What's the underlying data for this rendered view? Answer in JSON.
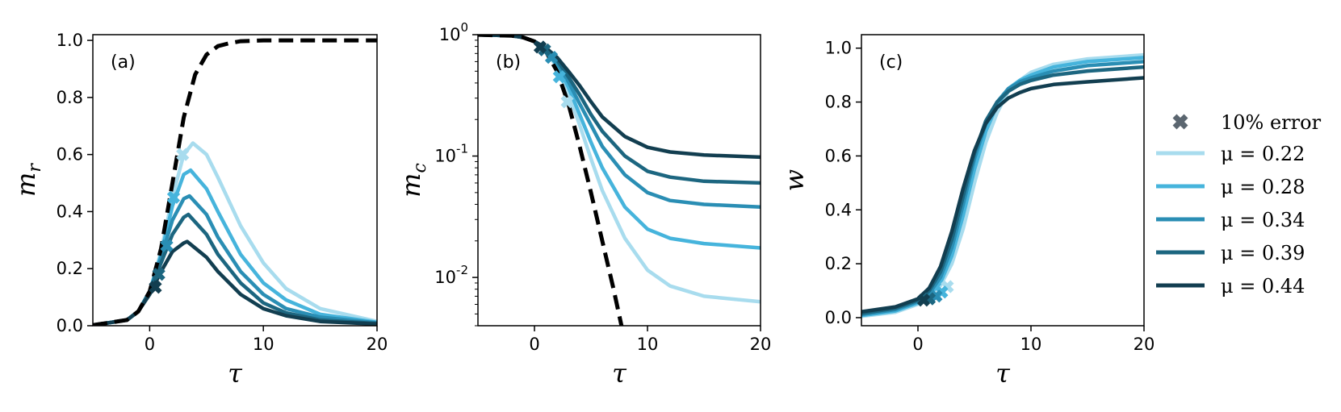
{
  "legend": {
    "marker_label": "10% error",
    "marker_color": "#5b6670",
    "entries": [
      {
        "label": "μ = 0.22",
        "color": "#a8dcee"
      },
      {
        "label": "μ = 0.28",
        "color": "#46b4dc"
      },
      {
        "label": "μ = 0.34",
        "color": "#2a8eb4"
      },
      {
        "label": "μ = 0.39",
        "color": "#1c6680"
      },
      {
        "label": "μ = 0.44",
        "color": "#123e50"
      }
    ]
  },
  "chart_data": [
    {
      "type": "line",
      "panel_label": "(a)",
      "xlabel": "τ",
      "ylabel": "m",
      "ylabel_sub": "r",
      "xlim": [
        -5,
        20
      ],
      "ylim": [
        0,
        1.02
      ],
      "xticks": [
        0,
        10,
        20
      ],
      "yticks": [
        0.0,
        0.2,
        0.4,
        0.6,
        0.8,
        1.0
      ],
      "ytick_labels": [
        "0.0",
        "0.2",
        "0.4",
        "0.6",
        "0.8",
        "1.0"
      ],
      "reference_curve": {
        "style": "dashed",
        "color": "#000000",
        "x": [
          -5,
          -2,
          -1,
          0,
          1,
          2,
          3,
          4,
          5,
          6,
          7,
          8,
          10,
          14,
          20
        ],
        "y": [
          0.002,
          0.02,
          0.05,
          0.12,
          0.27,
          0.5,
          0.73,
          0.88,
          0.95,
          0.98,
          0.99,
          0.997,
          1.0,
          1.0,
          1.0
        ]
      },
      "series": [
        {
          "name": "μ = 0.22",
          "color": "#a8dcee",
          "x": [
            -5,
            -2,
            -1,
            0,
            1,
            2,
            3,
            3.8,
            5,
            6,
            8,
            10,
            12,
            15,
            20
          ],
          "y": [
            0.002,
            0.02,
            0.05,
            0.12,
            0.26,
            0.45,
            0.6,
            0.64,
            0.6,
            0.52,
            0.35,
            0.22,
            0.13,
            0.06,
            0.015
          ]
        },
        {
          "name": "μ = 0.28",
          "color": "#46b4dc",
          "x": [
            -5,
            -2,
            -1,
            0,
            1,
            2,
            3,
            3.6,
            5,
            6,
            8,
            10,
            12,
            15,
            20
          ],
          "y": [
            0.002,
            0.02,
            0.05,
            0.12,
            0.25,
            0.42,
            0.53,
            0.545,
            0.48,
            0.4,
            0.25,
            0.15,
            0.09,
            0.04,
            0.012
          ]
        },
        {
          "name": "μ = 0.34",
          "color": "#2a8eb4",
          "x": [
            -5,
            -2,
            -1,
            0,
            1,
            2,
            3,
            3.5,
            5,
            6,
            8,
            10,
            12,
            15,
            20
          ],
          "y": [
            0.002,
            0.02,
            0.05,
            0.12,
            0.24,
            0.37,
            0.445,
            0.455,
            0.39,
            0.31,
            0.19,
            0.11,
            0.06,
            0.03,
            0.01
          ]
        },
        {
          "name": "μ = 0.39",
          "color": "#1c6680",
          "x": [
            -5,
            -2,
            -1,
            0,
            1,
            2,
            3,
            3.4,
            5,
            6,
            8,
            10,
            12,
            15,
            20
          ],
          "y": [
            0.002,
            0.02,
            0.05,
            0.12,
            0.22,
            0.32,
            0.38,
            0.39,
            0.32,
            0.25,
            0.15,
            0.08,
            0.045,
            0.02,
            0.008
          ]
        },
        {
          "name": "μ = 0.44",
          "color": "#123e50",
          "x": [
            -5,
            -2,
            -1,
            0,
            1,
            2,
            3,
            3.3,
            5,
            6,
            8,
            10,
            12,
            15,
            20
          ],
          "y": [
            0.002,
            0.02,
            0.05,
            0.11,
            0.19,
            0.26,
            0.29,
            0.295,
            0.24,
            0.19,
            0.11,
            0.06,
            0.035,
            0.015,
            0.006
          ]
        }
      ],
      "error_markers": [
        {
          "x": 2.9,
          "y": 0.6,
          "color": "#a8dcee"
        },
        {
          "x": 2.1,
          "y": 0.45,
          "color": "#46b4dc"
        },
        {
          "x": 1.5,
          "y": 0.28,
          "color": "#2a8eb4"
        },
        {
          "x": 0.8,
          "y": 0.18,
          "color": "#1c6680"
        },
        {
          "x": 0.5,
          "y": 0.135,
          "color": "#123e50"
        }
      ]
    },
    {
      "type": "line",
      "panel_label": "(b)",
      "xlabel": "τ",
      "ylabel": "m",
      "ylabel_sub": "c",
      "yscale": "log",
      "xlim": [
        -5,
        20
      ],
      "ylim": [
        0.004,
        1.0
      ],
      "xticks": [
        0,
        10,
        20
      ],
      "yticks": [
        0.01,
        0.1,
        1
      ],
      "ytick_labels": [
        {
          "base": "10",
          "exp": "-2"
        },
        {
          "base": "10",
          "exp": "-1"
        },
        {
          "base": "10",
          "exp": "0"
        }
      ],
      "reference_curve": {
        "style": "dashed",
        "color": "#000000",
        "x": [
          -5,
          -2,
          -1,
          0,
          1,
          2,
          3,
          4,
          5,
          6,
          7,
          7.7
        ],
        "y": [
          0.998,
          0.98,
          0.95,
          0.88,
          0.73,
          0.5,
          0.27,
          0.12,
          0.05,
          0.02,
          0.008,
          0.004
        ]
      },
      "series": [
        {
          "name": "μ = 0.22",
          "color": "#a8dcee",
          "x": [
            -5,
            -2,
            -1,
            0,
            1,
            2,
            3,
            4,
            5,
            6,
            8,
            10,
            12,
            15,
            20
          ],
          "y": [
            0.998,
            0.98,
            0.95,
            0.88,
            0.74,
            0.54,
            0.33,
            0.18,
            0.095,
            0.052,
            0.021,
            0.0115,
            0.0085,
            0.007,
            0.0063
          ]
        },
        {
          "name": "μ = 0.28",
          "color": "#46b4dc",
          "x": [
            -5,
            -2,
            -1,
            0,
            1,
            2,
            3,
            4,
            5,
            6,
            8,
            10,
            12,
            15,
            20
          ],
          "y": [
            0.998,
            0.98,
            0.95,
            0.88,
            0.75,
            0.56,
            0.37,
            0.22,
            0.13,
            0.08,
            0.038,
            0.025,
            0.021,
            0.019,
            0.0175
          ]
        },
        {
          "name": "μ = 0.34",
          "color": "#2a8eb4",
          "x": [
            -5,
            -2,
            -1,
            0,
            1,
            2,
            3,
            4,
            5,
            6,
            8,
            10,
            12,
            15,
            20
          ],
          "y": [
            0.998,
            0.98,
            0.95,
            0.88,
            0.76,
            0.59,
            0.41,
            0.27,
            0.18,
            0.12,
            0.07,
            0.05,
            0.043,
            0.04,
            0.038
          ]
        },
        {
          "name": "μ = 0.39",
          "color": "#1c6680",
          "x": [
            -5,
            -2,
            -1,
            0,
            1,
            2,
            3,
            4,
            5,
            6,
            8,
            10,
            12,
            15,
            20
          ],
          "y": [
            0.998,
            0.98,
            0.95,
            0.88,
            0.77,
            0.62,
            0.45,
            0.32,
            0.22,
            0.16,
            0.1,
            0.075,
            0.067,
            0.062,
            0.06
          ]
        },
        {
          "name": "μ = 0.44",
          "color": "#123e50",
          "x": [
            -5,
            -2,
            -1,
            0,
            1,
            2,
            3,
            4,
            5,
            6,
            8,
            10,
            12,
            15,
            20
          ],
          "y": [
            0.998,
            0.98,
            0.95,
            0.88,
            0.78,
            0.65,
            0.5,
            0.38,
            0.28,
            0.21,
            0.145,
            0.118,
            0.108,
            0.102,
            0.098
          ]
        }
      ],
      "error_markers": [
        {
          "x": 2.9,
          "y": 0.28,
          "color": "#a8dcee"
        },
        {
          "x": 2.2,
          "y": 0.45,
          "color": "#46b4dc"
        },
        {
          "x": 1.5,
          "y": 0.65,
          "color": "#2a8eb4"
        },
        {
          "x": 0.9,
          "y": 0.75,
          "color": "#1c6680"
        },
        {
          "x": 0.5,
          "y": 0.79,
          "color": "#123e50"
        }
      ]
    },
    {
      "type": "line",
      "panel_label": "(c)",
      "xlabel": "τ",
      "ylabel": "w",
      "xlim": [
        -5,
        20
      ],
      "ylim": [
        -0.03,
        1.05
      ],
      "xticks": [
        0,
        10,
        20
      ],
      "yticks": [
        0.0,
        0.2,
        0.4,
        0.6,
        0.8,
        1.0
      ],
      "ytick_labels": [
        "0.0",
        "0.2",
        "0.4",
        "0.6",
        "0.8",
        "1.0"
      ],
      "series": [
        {
          "name": "μ = 0.22",
          "color": "#a8dcee",
          "x": [
            -5,
            -2,
            0,
            1,
            2,
            3,
            4,
            5,
            6,
            7,
            8,
            9,
            10,
            12,
            15,
            20
          ],
          "y": [
            0.005,
            0.02,
            0.05,
            0.08,
            0.12,
            0.2,
            0.33,
            0.5,
            0.65,
            0.76,
            0.84,
            0.88,
            0.91,
            0.94,
            0.96,
            0.975
          ]
        },
        {
          "name": "μ = 0.28",
          "color": "#46b4dc",
          "x": [
            -5,
            -2,
            0,
            1,
            2,
            3,
            4,
            5,
            6,
            7,
            8,
            9,
            10,
            12,
            15,
            20
          ],
          "y": [
            0.008,
            0.025,
            0.055,
            0.085,
            0.13,
            0.23,
            0.38,
            0.55,
            0.69,
            0.79,
            0.85,
            0.88,
            0.9,
            0.93,
            0.95,
            0.965
          ]
        },
        {
          "name": "μ = 0.34",
          "color": "#2a8eb4",
          "x": [
            -5,
            -2,
            0,
            1,
            2,
            3,
            4,
            5,
            6,
            7,
            8,
            9,
            10,
            12,
            15,
            20
          ],
          "y": [
            0.012,
            0.03,
            0.06,
            0.09,
            0.15,
            0.26,
            0.42,
            0.59,
            0.72,
            0.8,
            0.85,
            0.875,
            0.89,
            0.915,
            0.935,
            0.95
          ]
        },
        {
          "name": "μ = 0.39",
          "color": "#1c6680",
          "x": [
            -5,
            -2,
            0,
            1,
            2,
            3,
            4,
            5,
            6,
            7,
            8,
            9,
            10,
            12,
            15,
            20
          ],
          "y": [
            0.016,
            0.035,
            0.065,
            0.1,
            0.17,
            0.29,
            0.45,
            0.61,
            0.73,
            0.8,
            0.84,
            0.865,
            0.88,
            0.9,
            0.915,
            0.93
          ]
        },
        {
          "name": "μ = 0.44",
          "color": "#123e50",
          "x": [
            -5,
            -2,
            0,
            1,
            2,
            3,
            4,
            5,
            6,
            7,
            8,
            9,
            10,
            12,
            15,
            20
          ],
          "y": [
            0.022,
            0.04,
            0.07,
            0.11,
            0.19,
            0.32,
            0.48,
            0.62,
            0.72,
            0.78,
            0.815,
            0.835,
            0.85,
            0.865,
            0.875,
            0.89
          ]
        }
      ],
      "error_markers": [
        {
          "x": 2.6,
          "y": 0.115,
          "color": "#a8dcee"
        },
        {
          "x": 2.1,
          "y": 0.095,
          "color": "#46b4dc"
        },
        {
          "x": 1.6,
          "y": 0.08,
          "color": "#2a8eb4"
        },
        {
          "x": 1.0,
          "y": 0.07,
          "color": "#1c6680"
        },
        {
          "x": 0.5,
          "y": 0.065,
          "color": "#123e50"
        }
      ]
    }
  ]
}
